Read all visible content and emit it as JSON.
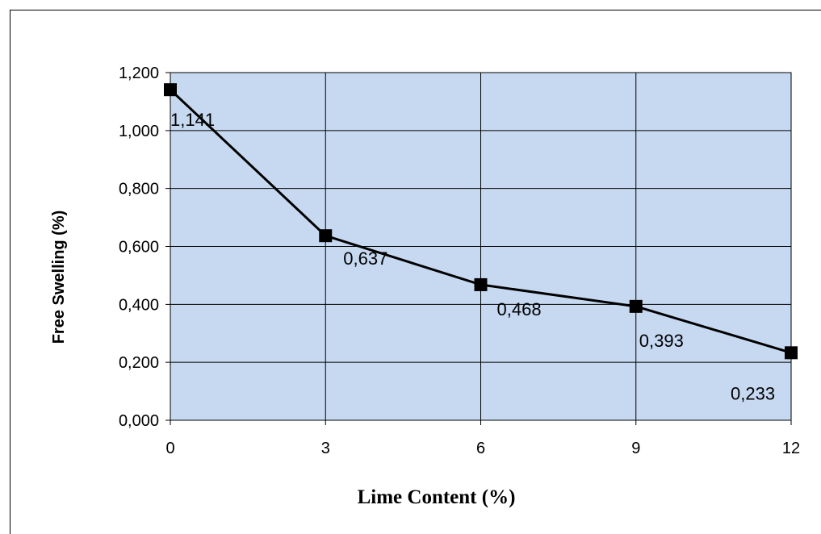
{
  "chart_data": {
    "type": "line",
    "title": "",
    "xlabel": "Lime Content (%)",
    "ylabel": "Free Swelling (%)",
    "x": [
      0,
      3,
      6,
      9,
      12
    ],
    "x_tick_labels": [
      "0",
      "3",
      "6",
      "9",
      "12"
    ],
    "y_tick_labels": [
      "0,000",
      "0,200",
      "0,400",
      "0,600",
      "0,800",
      "1,000",
      "1,200"
    ],
    "y_ticks": [
      0,
      0.2,
      0.4,
      0.6,
      0.8,
      1.0,
      1.2
    ],
    "xlim": [
      0,
      12
    ],
    "ylim": [
      0,
      1.2
    ],
    "grid": true,
    "series": [
      {
        "values": [
          1.141,
          0.637,
          0.468,
          0.393,
          0.233
        ],
        "data_labels": [
          "1,141",
          "0,637",
          "0,468",
          "0,393",
          "0,233"
        ],
        "marker": "square",
        "color": "#000000"
      }
    ],
    "colors": {
      "plot_background": "#c6d9f1",
      "grid": "#000000",
      "line": "#000000"
    }
  }
}
